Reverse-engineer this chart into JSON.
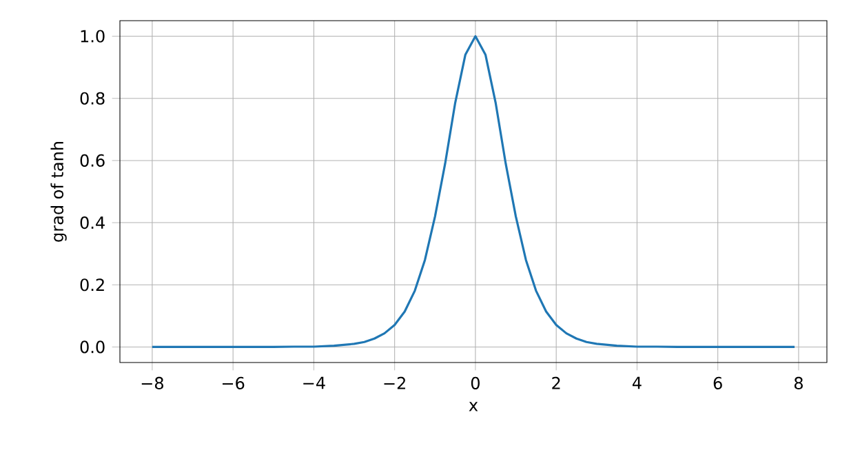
{
  "chart_data": {
    "type": "line",
    "xlabel": "x",
    "ylabel": "grad of tanh",
    "x": [
      -8,
      -6,
      -5,
      -4.5,
      -4,
      -3.5,
      -3,
      -2.75,
      -2.5,
      -2.25,
      -2,
      -1.75,
      -1.5,
      -1.25,
      -1,
      -0.75,
      -0.5,
      -0.25,
      0,
      0.25,
      0.5,
      0.75,
      1,
      1.25,
      1.5,
      1.75,
      2,
      2.25,
      2.5,
      2.75,
      3,
      3.5,
      4,
      4.5,
      5,
      6,
      7.9
    ],
    "values": [
      0,
      0,
      0,
      0.001,
      0.001,
      0.004,
      0.01,
      0.016,
      0.027,
      0.044,
      0.071,
      0.114,
      0.181,
      0.28,
      0.42,
      0.59,
      0.786,
      0.94,
      1.0,
      0.94,
      0.786,
      0.59,
      0.42,
      0.28,
      0.181,
      0.114,
      0.071,
      0.044,
      0.027,
      0.016,
      0.01,
      0.004,
      0.001,
      0.001,
      0,
      0,
      0
    ],
    "color": "#1f77b4",
    "xlim": [
      -8.8,
      8.7
    ],
    "ylim": [
      -0.05,
      1.05
    ],
    "xticks": [
      {
        "value": -8,
        "label": "−8"
      },
      {
        "value": -6,
        "label": "−6"
      },
      {
        "value": -4,
        "label": "−4"
      },
      {
        "value": -2,
        "label": "−2"
      },
      0,
      2,
      4,
      6,
      8
    ],
    "yticks": [
      {
        "value": 0,
        "label": "0.0"
      },
      {
        "value": 0.2,
        "label": "0.2"
      },
      {
        "value": 0.4,
        "label": "0.4"
      },
      {
        "value": 0.6,
        "label": "0.6"
      },
      {
        "value": 0.8,
        "label": "0.8"
      },
      {
        "value": 1.0,
        "label": "1.0"
      }
    ],
    "grid": true
  }
}
